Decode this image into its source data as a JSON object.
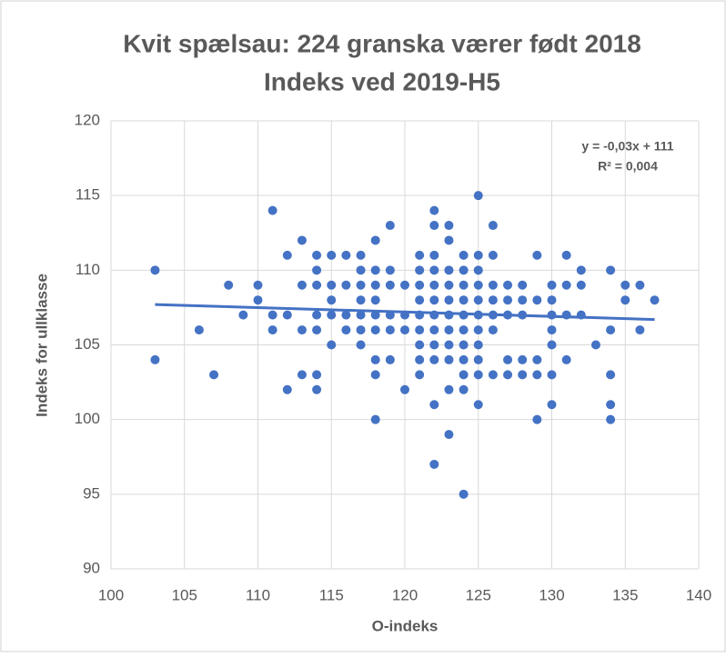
{
  "chart_data": {
    "type": "scatter",
    "title": [
      "Kvit spælsau: 224 granska værer født 2018",
      "Indeks ved 2019-H5"
    ],
    "x_label": "O-indeks",
    "y_label": "Indeks for ullklasse",
    "color": "#4472c4",
    "x": [
      103,
      103,
      106,
      107,
      108,
      109,
      110,
      110,
      111,
      111,
      111,
      112,
      112,
      112,
      113,
      113,
      113,
      113,
      114,
      114,
      114,
      114,
      114,
      114,
      114,
      115,
      115,
      115,
      115,
      115,
      116,
      116,
      116,
      116,
      117,
      117,
      117,
      117,
      117,
      117,
      117,
      118,
      118,
      118,
      118,
      118,
      118,
      118,
      118,
      118,
      119,
      119,
      119,
      119,
      119,
      119,
      120,
      120,
      120,
      120,
      121,
      121,
      121,
      121,
      121,
      121,
      121,
      121,
      121,
      122,
      122,
      122,
      122,
      122,
      122,
      122,
      122,
      122,
      122,
      122,
      122,
      123,
      123,
      123,
      123,
      123,
      123,
      123,
      123,
      123,
      123,
      123,
      124,
      124,
      124,
      124,
      124,
      124,
      124,
      124,
      124,
      124,
      124,
      125,
      125,
      125,
      125,
      125,
      125,
      125,
      125,
      125,
      125,
      125,
      126,
      126,
      126,
      126,
      126,
      126,
      126,
      127,
      127,
      127,
      127,
      127,
      128,
      128,
      128,
      128,
      128,
      129,
      129,
      129,
      129,
      129,
      130,
      130,
      130,
      130,
      130,
      130,
      130,
      131,
      131,
      131,
      131,
      132,
      132,
      132,
      133,
      134,
      134,
      134,
      134,
      134,
      135,
      135,
      136,
      136,
      137
    ],
    "values": [
      110,
      104,
      106,
      103,
      109,
      107,
      109,
      108,
      114,
      107,
      106,
      111,
      107,
      102,
      112,
      109,
      106,
      103,
      111,
      110,
      109,
      107,
      106,
      103,
      102,
      111,
      109,
      108,
      107,
      105,
      111,
      109,
      107,
      106,
      111,
      110,
      109,
      108,
      107,
      106,
      105,
      112,
      110,
      109,
      108,
      107,
      106,
      104,
      103,
      100,
      113,
      110,
      109,
      107,
      106,
      104,
      109,
      107,
      106,
      102,
      111,
      110,
      109,
      108,
      107,
      106,
      105,
      104,
      103,
      114,
      113,
      111,
      110,
      109,
      108,
      107,
      106,
      105,
      104,
      101,
      97,
      113,
      112,
      110,
      109,
      108,
      107,
      106,
      105,
      104,
      102,
      99,
      111,
      110,
      109,
      108,
      107,
      106,
      105,
      104,
      103,
      102,
      95,
      115,
      111,
      110,
      109,
      108,
      107,
      106,
      105,
      104,
      103,
      101,
      113,
      111,
      109,
      108,
      107,
      106,
      103,
      109,
      108,
      107,
      104,
      103,
      109,
      108,
      107,
      104,
      103,
      111,
      108,
      104,
      103,
      100,
      109,
      108,
      107,
      106,
      105,
      103,
      101,
      111,
      109,
      107,
      104,
      110,
      109,
      107,
      105,
      110,
      106,
      103,
      101,
      100,
      109,
      108,
      109,
      106,
      108
    ],
    "trendline": {
      "x": [
        103,
        137
      ],
      "y": [
        107.7,
        106.7
      ]
    },
    "annotation": [
      "y = -0,03x + 111",
      "R² = 0,004"
    ],
    "xlim": [
      100,
      140
    ],
    "xticks": [
      100,
      105,
      110,
      115,
      120,
      125,
      130,
      135,
      140
    ],
    "ylim": [
      90,
      120
    ],
    "yticks": [
      90,
      95,
      100,
      105,
      110,
      115,
      120
    ],
    "grid": true
  }
}
